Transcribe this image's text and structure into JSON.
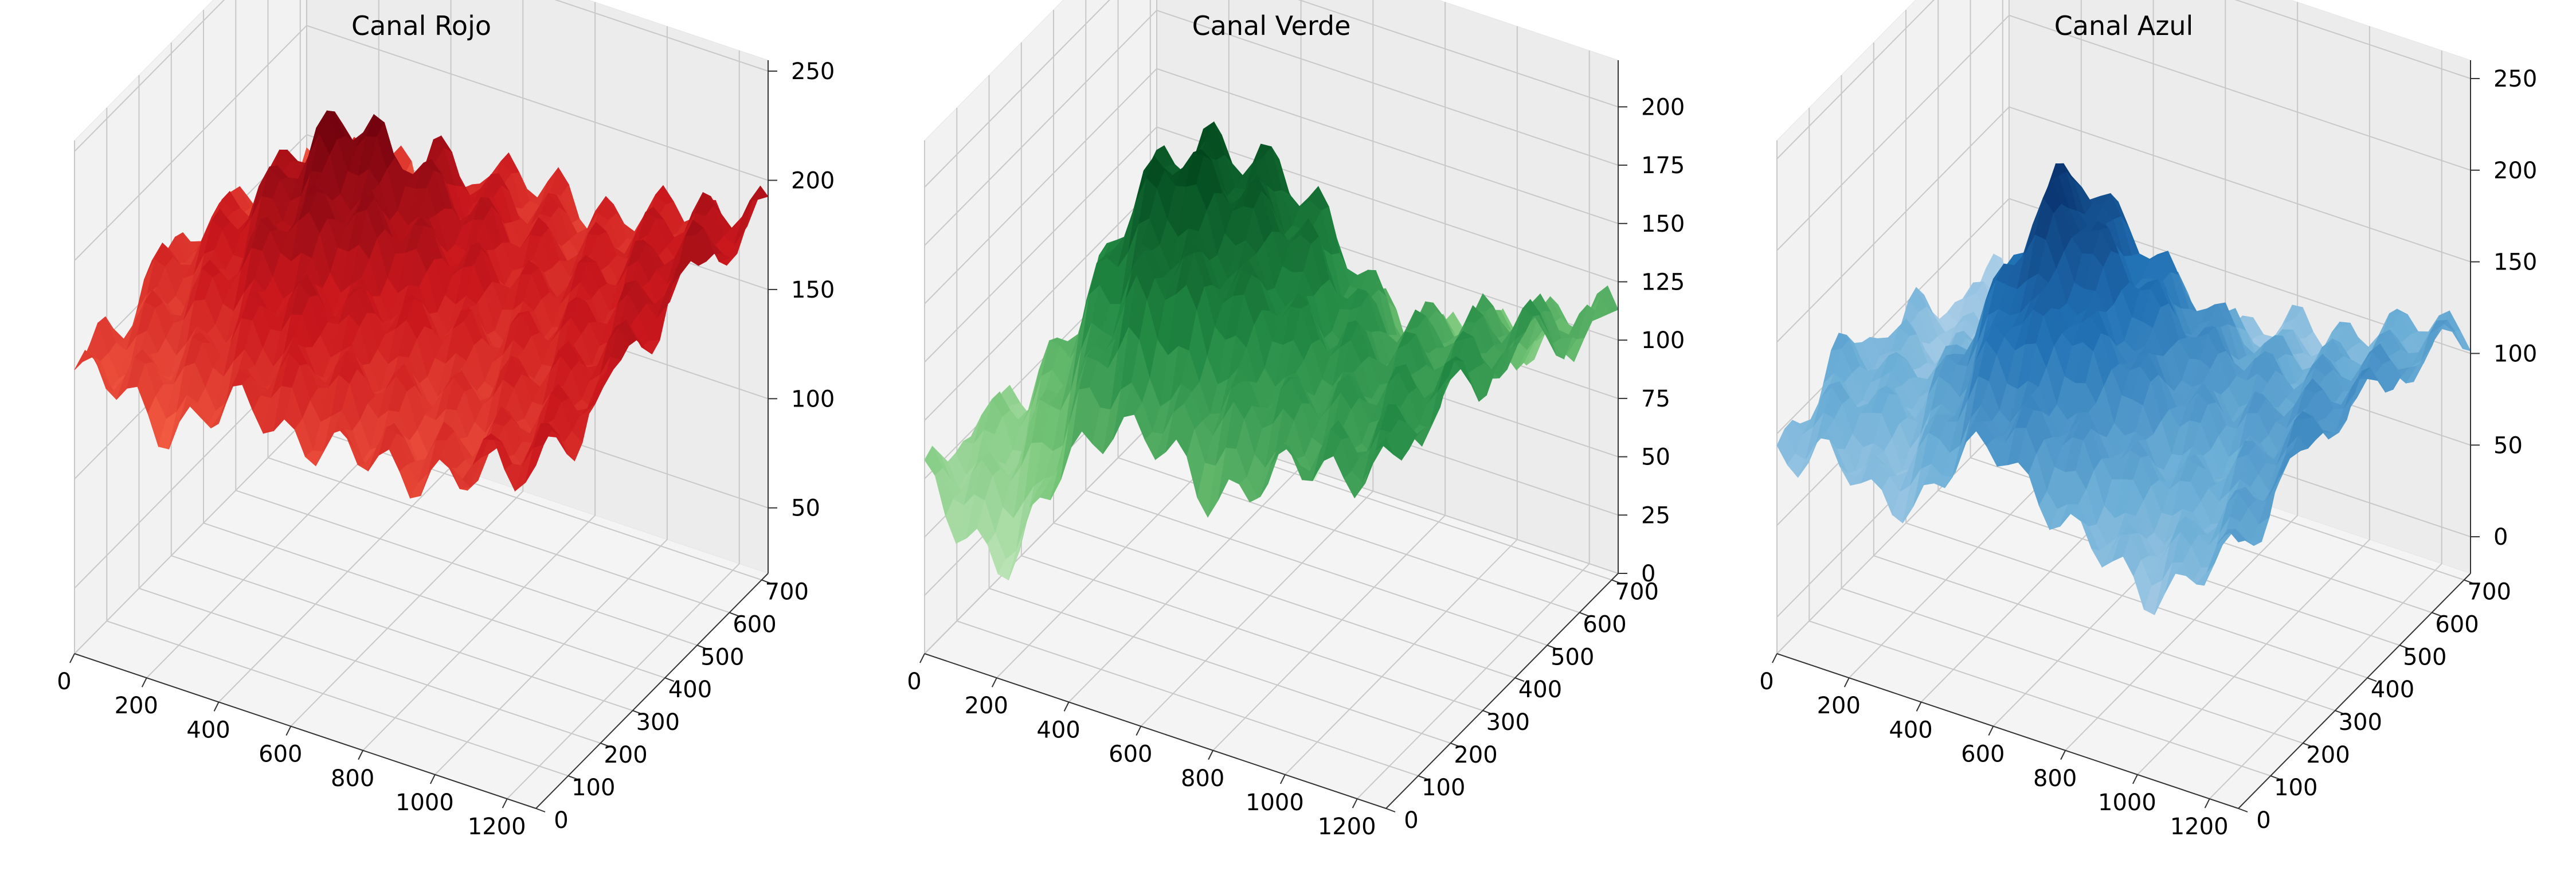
{
  "chart_data": [
    {
      "type": "surface",
      "title": "Canal Rojo",
      "colormap": "Reds",
      "xlabel": "",
      "ylabel": "",
      "zlabel": "",
      "xlim": [
        0,
        1280
      ],
      "ylim": [
        0,
        720
      ],
      "zlim": [
        20,
        255
      ],
      "x_ticks": [
        0,
        200,
        400,
        600,
        800,
        1000,
        1200
      ],
      "y_ticks": [
        0,
        100,
        200,
        300,
        400,
        500,
        600,
        700
      ],
      "z_ticks": [
        50,
        100,
        150,
        200,
        250
      ],
      "surface_z_coarse": [
        [
          150,
          145,
          140,
          150,
          160,
          155,
          150,
          155,
          160,
          170,
          175
        ],
        [
          150,
          155,
          160,
          170,
          180,
          170,
          160,
          150,
          155,
          165,
          175
        ],
        [
          155,
          165,
          180,
          195,
          185,
          175,
          165,
          160,
          165,
          170,
          180
        ],
        [
          160,
          175,
          195,
          215,
          205,
          190,
          175,
          165,
          170,
          175,
          185
        ],
        [
          150,
          170,
          200,
          230,
          215,
          195,
          180,
          170,
          175,
          180,
          190
        ],
        [
          145,
          160,
          190,
          60,
          200,
          185,
          175,
          170,
          175,
          185,
          195
        ],
        [
          135,
          150,
          170,
          25,
          175,
          170,
          165,
          165,
          175,
          185,
          190
        ],
        [
          130,
          140,
          155,
          100,
          160,
          160,
          160,
          160,
          170,
          180,
          185
        ]
      ],
      "grid": true
    },
    {
      "type": "surface",
      "title": "Canal Verde",
      "colormap": "Greens",
      "xlabel": "",
      "ylabel": "",
      "zlabel": "",
      "xlim": [
        0,
        1280
      ],
      "ylim": [
        0,
        720
      ],
      "zlim": [
        0,
        220
      ],
      "x_ticks": [
        0,
        200,
        400,
        600,
        800,
        1000,
        1200
      ],
      "y_ticks": [
        0,
        100,
        200,
        300,
        400,
        500,
        600,
        700
      ],
      "z_ticks": [
        0,
        25,
        50,
        75,
        100,
        125,
        150,
        175,
        200
      ],
      "surface_z_coarse": [
        [
          70,
          60,
          50,
          100,
          130,
          120,
          110,
          120,
          130,
          140,
          150
        ],
        [
          80,
          75,
          100,
          150,
          180,
          170,
          150,
          140,
          135,
          140,
          150
        ],
        [
          70,
          90,
          130,
          190,
          210,
          190,
          170,
          150,
          145,
          145,
          150
        ],
        [
          60,
          80,
          120,
          180,
          200,
          195,
          175,
          150,
          140,
          140,
          145
        ],
        [
          50,
          60,
          100,
          150,
          170,
          180,
          160,
          130,
          130,
          135,
          140
        ],
        [
          40,
          50,
          80,
          100,
          90,
          120,
          120,
          110,
          120,
          130,
          135
        ],
        [
          35,
          40,
          60,
          40,
          20,
          60,
          80,
          90,
          100,
          110,
          120
        ],
        [
          30,
          35,
          50,
          60,
          50,
          60,
          70,
          80,
          90,
          100,
          110
        ]
      ],
      "grid": true
    },
    {
      "type": "surface",
      "title": "Canal Azul",
      "colormap": "Blues",
      "xlabel": "",
      "ylabel": "",
      "zlabel": "",
      "xlim": [
        0,
        1280
      ],
      "ylim": [
        0,
        720
      ],
      "zlim": [
        -20,
        260
      ],
      "x_ticks": [
        0,
        200,
        400,
        600,
        800,
        1000,
        1200
      ],
      "y_ticks": [
        0,
        100,
        200,
        300,
        400,
        500,
        600,
        700
      ],
      "z_ticks": [
        0,
        50,
        100,
        150,
        200,
        250
      ],
      "surface_z_coarse": [
        [
          90,
          100,
          80,
          90,
          120,
          130,
          110,
          90,
          80,
          100,
          120
        ],
        [
          100,
          110,
          90,
          120,
          160,
          150,
          130,
          110,
          100,
          110,
          130
        ],
        [
          110,
          100,
          110,
          150,
          200,
          180,
          150,
          120,
          110,
          120,
          140
        ],
        [
          100,
          90,
          100,
          160,
          230,
          190,
          160,
          130,
          120,
          130,
          140
        ],
        [
          90,
          80,
          90,
          130,
          190,
          170,
          150,
          130,
          120,
          125,
          135
        ],
        [
          80,
          70,
          80,
          100,
          120,
          130,
          120,
          110,
          110,
          120,
          130
        ],
        [
          70,
          60,
          60,
          40,
          30,
          70,
          90,
          90,
          100,
          110,
          120
        ],
        [
          60,
          55,
          50,
          60,
          60,
          70,
          80,
          85,
          95,
          105,
          115
        ]
      ],
      "grid": true
    }
  ]
}
